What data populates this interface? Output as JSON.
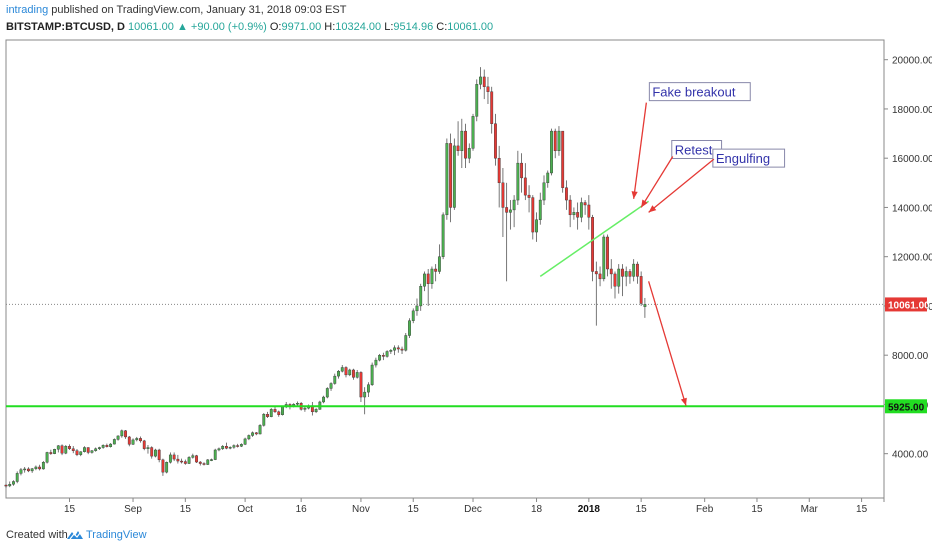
{
  "header": {
    "author": "intrading",
    "published": " published on TradingView.com, January 31, 2018 09:03 EST",
    "symbol": "BITSTAMP:BTCUSD, D",
    "last": "10061.00",
    "change": "▲ +90.00 (+0.9%)",
    "open_label": "O:",
    "open": "9971.00",
    "high_label": "H:",
    "high": "10324.00",
    "low_label": "L:",
    "low": "9514.96",
    "close_label": "C:",
    "close": "10061.00"
  },
  "footer": {
    "created": "Created with",
    "brand": "TradingView"
  },
  "colors": {
    "up": "#4caf50",
    "down": "#e53935",
    "wick": "#555555",
    "support": "#22dd22",
    "trend": "#66ee66",
    "arrow": "#e53935",
    "annotation_text": "#3333aa"
  },
  "chart_data": {
    "type": "candlestick",
    "symbol": "BITSTAMP:BTCUSD",
    "interval": "D",
    "ylim": [
      2200,
      20800
    ],
    "yticks": [
      4000,
      6000,
      8000,
      10000,
      12000,
      14000,
      16000,
      18000,
      20000
    ],
    "ytick_labels": [
      "4000.00",
      "6000.00",
      "8000.00",
      "10000.00",
      "12000.00",
      "14000.00",
      "16000.00",
      "18000.00",
      "20000.00"
    ],
    "xlim": [
      "2017-07-29",
      "2018-03-21"
    ],
    "xticks": [
      {
        "date": "2017-08-15",
        "label": "15"
      },
      {
        "date": "2017-09-01",
        "label": "Sep"
      },
      {
        "date": "2017-09-15",
        "label": "15"
      },
      {
        "date": "2017-10-01",
        "label": "Oct"
      },
      {
        "date": "2017-10-16",
        "label": "16"
      },
      {
        "date": "2017-11-01",
        "label": "Nov"
      },
      {
        "date": "2017-11-15",
        "label": "15"
      },
      {
        "date": "2017-12-01",
        "label": "Dec"
      },
      {
        "date": "2017-12-18",
        "label": "18"
      },
      {
        "date": "2018-01-01",
        "label": "2018"
      },
      {
        "date": "2018-01-15",
        "label": "15"
      },
      {
        "date": "2018-02-01",
        "label": "Feb"
      },
      {
        "date": "2018-02-15",
        "label": "15"
      },
      {
        "date": "2018-03-01",
        "label": "Mar"
      },
      {
        "date": "2018-03-15",
        "label": "15"
      }
    ],
    "price_labels": [
      {
        "value": 10061,
        "label": "10061.00",
        "color": "#e53935"
      },
      {
        "value": 5925,
        "label": "5925.00",
        "color": "#22dd22"
      }
    ],
    "current_price_line": 10061,
    "support_level": 5925,
    "trendline": {
      "from": {
        "date": "2017-12-19",
        "price": 11200
      },
      "to": {
        "date": "2018-01-17",
        "price": 14250
      }
    },
    "annotations": [
      {
        "text": "Fake breakout",
        "date": "2018-01-18",
        "price": 18500,
        "arrow_to": {
          "date": "2018-01-13",
          "price": 14350
        }
      },
      {
        "text": "Retest",
        "date": "2018-01-24",
        "price": 16150,
        "arrow_to": {
          "date": "2018-01-15",
          "price": 14000
        }
      },
      {
        "text": "Engulfing",
        "date": "2018-02-04",
        "price": 15800,
        "arrow_to": {
          "date": "2018-01-17",
          "price": 13800
        }
      },
      {
        "text": "",
        "arrow_from": {
          "date": "2018-01-17",
          "price": 11000
        },
        "arrow_to": {
          "date": "2018-01-27",
          "price": 5950
        }
      }
    ],
    "start_date": "2017-07-29",
    "candles": [
      [
        2725,
        2760,
        2610,
        2690
      ],
      [
        2690,
        2870,
        2640,
        2760
      ],
      [
        2760,
        2920,
        2700,
        2870
      ],
      [
        2870,
        3280,
        2800,
        3200
      ],
      [
        3200,
        3420,
        3120,
        3350
      ],
      [
        3350,
        3460,
        3230,
        3380
      ],
      [
        3380,
        3450,
        3250,
        3300
      ],
      [
        3300,
        3420,
        3220,
        3390
      ],
      [
        3390,
        3520,
        3330,
        3460
      ],
      [
        3460,
        3550,
        3320,
        3380
      ],
      [
        3380,
        3700,
        3350,
        3650
      ],
      [
        3650,
        4080,
        3600,
        4050
      ],
      [
        4050,
        4160,
        3950,
        4000
      ],
      [
        4000,
        4200,
        3980,
        4180
      ],
      [
        4180,
        4350,
        4050,
        4320
      ],
      [
        4320,
        4380,
        3940,
        4020
      ],
      [
        4020,
        4350,
        3980,
        4300
      ],
      [
        4300,
        4380,
        4150,
        4200
      ],
      [
        4200,
        4310,
        4020,
        4120
      ],
      [
        4120,
        4190,
        3900,
        3960
      ],
      [
        3960,
        4100,
        3900,
        4080
      ],
      [
        4080,
        4300,
        4050,
        4250
      ],
      [
        4250,
        4260,
        3980,
        4050
      ],
      [
        4050,
        4150,
        4000,
        4120
      ],
      [
        4120,
        4250,
        4080,
        4200
      ],
      [
        4200,
        4280,
        4150,
        4250
      ],
      [
        4250,
        4380,
        4200,
        4340
      ],
      [
        4340,
        4410,
        4250,
        4280
      ],
      [
        4280,
        4430,
        4250,
        4390
      ],
      [
        4390,
        4620,
        4370,
        4580
      ],
      [
        4580,
        4750,
        4530,
        4720
      ],
      [
        4720,
        4980,
        4650,
        4930
      ],
      [
        4930,
        4960,
        4600,
        4680
      ],
      [
        4680,
        4720,
        4300,
        4380
      ],
      [
        4380,
        4620,
        4350,
        4560
      ],
      [
        4560,
        4680,
        4500,
        4620
      ],
      [
        4620,
        4700,
        4450,
        4520
      ],
      [
        4520,
        4560,
        4140,
        4200
      ],
      [
        4200,
        4350,
        4000,
        4250
      ],
      [
        4250,
        4300,
        3800,
        3900
      ],
      [
        3900,
        4200,
        3850,
        4150
      ],
      [
        4150,
        4200,
        3650,
        3750
      ],
      [
        3750,
        3800,
        3100,
        3250
      ],
      [
        3250,
        3680,
        3200,
        3650
      ],
      [
        3650,
        4050,
        3600,
        3950
      ],
      [
        3950,
        4050,
        3700,
        3780
      ],
      [
        3780,
        3950,
        3600,
        3700
      ],
      [
        3700,
        3800,
        3600,
        3680
      ],
      [
        3680,
        3760,
        3550,
        3600
      ],
      [
        3600,
        3900,
        3580,
        3850
      ],
      [
        3850,
        4000,
        3800,
        3920
      ],
      [
        3920,
        3950,
        3620,
        3660
      ],
      [
        3660,
        3700,
        3520,
        3600
      ],
      [
        3600,
        3650,
        3520,
        3560
      ],
      [
        3560,
        3780,
        3540,
        3750
      ],
      [
        3750,
        3800,
        3700,
        3760
      ],
      [
        3760,
        4200,
        3740,
        4150
      ],
      [
        4150,
        4250,
        4100,
        4200
      ],
      [
        4200,
        4350,
        4150,
        4300
      ],
      [
        4300,
        4450,
        4180,
        4220
      ],
      [
        4220,
        4300,
        4180,
        4260
      ],
      [
        4260,
        4380,
        4200,
        4330
      ],
      [
        4330,
        4400,
        4250,
        4300
      ],
      [
        4300,
        4420,
        4270,
        4380
      ],
      [
        4380,
        4650,
        4350,
        4600
      ],
      [
        4600,
        4780,
        4550,
        4740
      ],
      [
        4740,
        4900,
        4680,
        4850
      ],
      [
        4850,
        4880,
        4750,
        4800
      ],
      [
        4800,
        5200,
        4780,
        5150
      ],
      [
        5150,
        5650,
        5100,
        5600
      ],
      [
        5600,
        5700,
        5450,
        5500
      ],
      [
        5500,
        5850,
        5480,
        5800
      ],
      [
        5800,
        5900,
        5650,
        5700
      ],
      [
        5700,
        5750,
        5500,
        5580
      ],
      [
        5580,
        5950,
        5550,
        5900
      ],
      [
        5900,
        6100,
        5850,
        6000
      ],
      [
        6000,
        6050,
        5800,
        5920
      ],
      [
        5920,
        6050,
        5880,
        6010
      ],
      [
        6010,
        6120,
        5950,
        6050
      ],
      [
        6050,
        6100,
        5750,
        5800
      ],
      [
        5800,
        5900,
        5700,
        5850
      ],
      [
        5850,
        6000,
        5800,
        5950
      ],
      [
        5950,
        6100,
        5550,
        5700
      ],
      [
        5700,
        5850,
        5650,
        5800
      ],
      [
        5800,
        6150,
        5780,
        6100
      ],
      [
        6100,
        6350,
        6050,
        6300
      ],
      [
        6300,
        6700,
        6250,
        6650
      ],
      [
        6650,
        6900,
        6550,
        6850
      ],
      [
        6850,
        7250,
        6800,
        7150
      ],
      [
        7150,
        7400,
        7050,
        7350
      ],
      [
        7350,
        7600,
        7300,
        7500
      ],
      [
        7500,
        7550,
        7100,
        7200
      ],
      [
        7200,
        7450,
        7150,
        7400
      ],
      [
        7400,
        7450,
        7000,
        7100
      ],
      [
        7100,
        7400,
        7050,
        7300
      ],
      [
        7300,
        7350,
        6100,
        6300
      ],
      [
        6300,
        6700,
        5600,
        6500
      ],
      [
        6500,
        6900,
        6300,
        6800
      ],
      [
        6800,
        7700,
        6750,
        7600
      ],
      [
        7600,
        7900,
        7500,
        7800
      ],
      [
        7800,
        8050,
        7750,
        8000
      ],
      [
        8000,
        8100,
        7800,
        7950
      ],
      [
        7950,
        8200,
        7900,
        8150
      ],
      [
        8150,
        8250,
        8050,
        8200
      ],
      [
        8200,
        8400,
        8000,
        8300
      ],
      [
        8300,
        8400,
        8100,
        8250
      ],
      [
        8250,
        8350,
        8050,
        8200
      ],
      [
        8200,
        8900,
        8150,
        8800
      ],
      [
        8800,
        9500,
        8700,
        9400
      ],
      [
        9400,
        9900,
        9300,
        9800
      ],
      [
        9800,
        10300,
        9600,
        10000
      ],
      [
        10000,
        10900,
        9800,
        10800
      ],
      [
        10800,
        11400,
        10600,
        11300
      ],
      [
        11300,
        11500,
        10000,
        10900
      ],
      [
        10900,
        11600,
        10700,
        11500
      ],
      [
        11500,
        11700,
        11000,
        11400
      ],
      [
        11400,
        12500,
        11300,
        12000
      ],
      [
        12000,
        13800,
        11900,
        13700
      ],
      [
        13700,
        16800,
        13500,
        16600
      ],
      [
        16600,
        17000,
        13400,
        14000
      ],
      [
        14000,
        16800,
        13900,
        16500
      ],
      [
        16500,
        17500,
        16100,
        16300
      ],
      [
        16300,
        17600,
        15600,
        17100
      ],
      [
        17100,
        17400,
        15600,
        16000
      ],
      [
        16000,
        16600,
        15800,
        16400
      ],
      [
        16400,
        17800,
        16300,
        17700
      ],
      [
        17700,
        19200,
        17500,
        19000
      ],
      [
        19000,
        19700,
        18800,
        19300
      ],
      [
        19300,
        19600,
        18400,
        18900
      ],
      [
        18900,
        19300,
        18200,
        18700
      ],
      [
        18700,
        18900,
        17000,
        17400
      ],
      [
        17400,
        17800,
        15700,
        16000
      ],
      [
        16000,
        16500,
        14000,
        15000
      ],
      [
        15000,
        15600,
        12800,
        14000
      ],
      [
        14000,
        15000,
        11000,
        13800
      ],
      [
        13800,
        14300,
        13100,
        13900
      ],
      [
        13900,
        14500,
        13200,
        14300
      ],
      [
        14300,
        16300,
        14100,
        15800
      ],
      [
        15800,
        16200,
        14600,
        15200
      ],
      [
        15200,
        15800,
        14300,
        14500
      ],
      [
        14500,
        14900,
        13800,
        14400
      ],
      [
        14400,
        14500,
        12700,
        13000
      ],
      [
        13000,
        13800,
        12600,
        13500
      ],
      [
        13500,
        14600,
        13300,
        14300
      ],
      [
        14300,
        15300,
        14100,
        15000
      ],
      [
        15000,
        15500,
        14800,
        15400
      ],
      [
        15400,
        17200,
        15300,
        17100
      ],
      [
        17100,
        17200,
        16000,
        16300
      ],
      [
        16300,
        17300,
        16100,
        17100
      ],
      [
        17100,
        17100,
        14600,
        14800
      ],
      [
        14800,
        15100,
        13900,
        14300
      ],
      [
        14300,
        14500,
        13200,
        13700
      ],
      [
        13700,
        14000,
        13500,
        13800
      ],
      [
        13800,
        14200,
        13100,
        13600
      ],
      [
        13600,
        14400,
        13400,
        14200
      ],
      [
        14200,
        14300,
        13700,
        14100
      ],
      [
        14100,
        14500,
        13100,
        13600
      ],
      [
        13600,
        13700,
        11000,
        11400
      ],
      [
        11400,
        11800,
        9200,
        11300
      ],
      [
        11300,
        11600,
        10800,
        11100
      ],
      [
        11100,
        12900,
        11000,
        12800
      ],
      [
        12800,
        12900,
        11200,
        11500
      ],
      [
        11500,
        11900,
        10700,
        11300
      ],
      [
        11300,
        11400,
        10300,
        10800
      ],
      [
        10800,
        11700,
        10500,
        11500
      ],
      [
        11500,
        11700,
        10400,
        11200
      ],
      [
        11200,
        11600,
        10800,
        11400
      ],
      [
        11400,
        11500,
        10900,
        11200
      ],
      [
        11200,
        11900,
        11000,
        11700
      ],
      [
        11700,
        11800,
        10900,
        11200
      ],
      [
        11200,
        11400,
        10000,
        10100
      ],
      [
        9971,
        10324,
        9514.96,
        10061
      ]
    ]
  }
}
